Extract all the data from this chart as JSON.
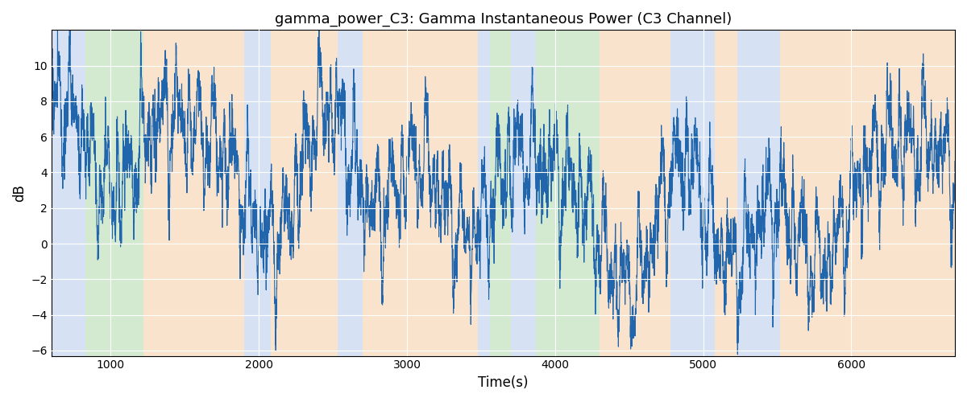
{
  "title": "gamma_power_C3: Gamma Instantaneous Power (C3 Channel)",
  "xlabel": "Time(s)",
  "ylabel": "dB",
  "xlim": [
    600,
    6700
  ],
  "ylim": [
    -6.3,
    12.0
  ],
  "yticks": [
    -6,
    -4,
    -2,
    0,
    2,
    4,
    6,
    8,
    10
  ],
  "xticks": [
    1000,
    2000,
    3000,
    4000,
    5000,
    6000
  ],
  "line_color": "#2166ac",
  "line_width": 0.8,
  "figsize": [
    12,
    5
  ],
  "dpi": 100,
  "bands": [
    {
      "xmin": 600,
      "xmax": 830,
      "color": "#aec6e8",
      "alpha": 0.5
    },
    {
      "xmin": 830,
      "xmax": 1220,
      "color": "#a8d5a2",
      "alpha": 0.5
    },
    {
      "xmin": 1220,
      "xmax": 1900,
      "color": "#f5c99a",
      "alpha": 0.5
    },
    {
      "xmin": 1900,
      "xmax": 2080,
      "color": "#aec6e8",
      "alpha": 0.5
    },
    {
      "xmin": 2080,
      "xmax": 2530,
      "color": "#f5c99a",
      "alpha": 0.5
    },
    {
      "xmin": 2530,
      "xmax": 2700,
      "color": "#aec6e8",
      "alpha": 0.5
    },
    {
      "xmin": 2700,
      "xmax": 3480,
      "color": "#f5c99a",
      "alpha": 0.5
    },
    {
      "xmin": 3480,
      "xmax": 3560,
      "color": "#aec6e8",
      "alpha": 0.5
    },
    {
      "xmin": 3560,
      "xmax": 3700,
      "color": "#a8d5a2",
      "alpha": 0.5
    },
    {
      "xmin": 3700,
      "xmax": 3870,
      "color": "#aec6e8",
      "alpha": 0.5
    },
    {
      "xmin": 3870,
      "xmax": 4300,
      "color": "#a8d5a2",
      "alpha": 0.5
    },
    {
      "xmin": 4300,
      "xmax": 4780,
      "color": "#f5c99a",
      "alpha": 0.5
    },
    {
      "xmin": 4780,
      "xmax": 5080,
      "color": "#aec6e8",
      "alpha": 0.5
    },
    {
      "xmin": 5080,
      "xmax": 5230,
      "color": "#f5c99a",
      "alpha": 0.5
    },
    {
      "xmin": 5230,
      "xmax": 5520,
      "color": "#aec6e8",
      "alpha": 0.5
    },
    {
      "xmin": 5520,
      "xmax": 6700,
      "color": "#f5c99a",
      "alpha": 0.5
    }
  ],
  "n_points": 6100,
  "seed": 17
}
